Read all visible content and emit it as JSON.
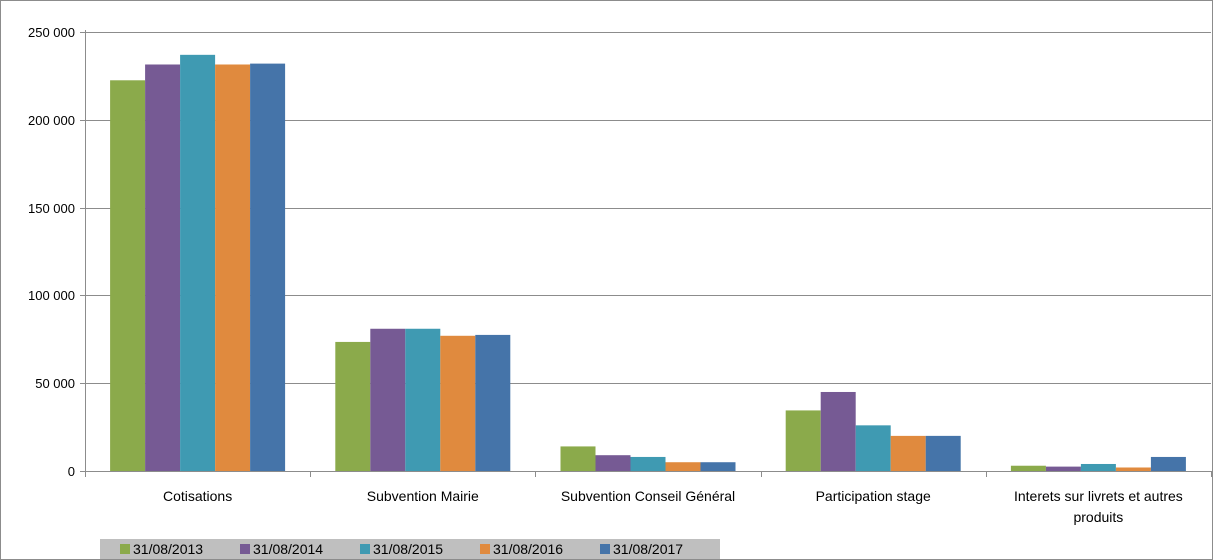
{
  "chart_data": {
    "type": "bar",
    "title": "",
    "xlabel": "",
    "ylabel": "",
    "ylim": [
      0,
      250000
    ],
    "yticks": [
      0,
      50000,
      100000,
      150000,
      200000,
      250000
    ],
    "ytick_labels": [
      "0",
      "50 000",
      "100 000",
      "150 000",
      "200 000",
      "250 000"
    ],
    "grid": true,
    "legend_position": "bottom-left",
    "categories": [
      "Cotisations",
      "Subvention Mairie",
      "Subvention Conseil Général",
      "Participation stage",
      "Interets sur livrets et autres produits"
    ],
    "category_label_lines": [
      [
        "Cotisations"
      ],
      [
        "Subvention Mairie"
      ],
      [
        "Subvention Conseil Général"
      ],
      [
        "Participation stage"
      ],
      [
        "Interets sur livrets et autres",
        "produits"
      ]
    ],
    "series": [
      {
        "name": "31/08/2013",
        "color": "#8BAA4B",
        "values": [
          222500,
          73500,
          14000,
          34500,
          3000
        ]
      },
      {
        "name": "31/08/2014",
        "color": "#765A94",
        "values": [
          231500,
          81000,
          9000,
          45000,
          2500
        ]
      },
      {
        "name": "31/08/2015",
        "color": "#3F9AB2",
        "values": [
          237000,
          81000,
          8000,
          26000,
          4000
        ]
      },
      {
        "name": "31/08/2016",
        "color": "#E08A3E",
        "values": [
          231500,
          77000,
          5000,
          20000,
          2000
        ]
      },
      {
        "name": "31/08/2017",
        "color": "#4574A9",
        "values": [
          232000,
          77500,
          5000,
          20000,
          8000
        ]
      }
    ]
  }
}
